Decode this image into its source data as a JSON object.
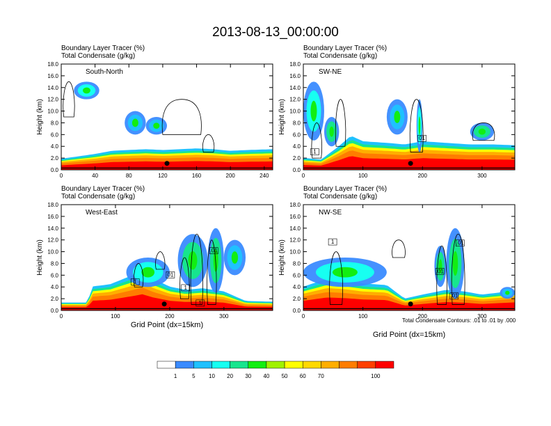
{
  "figure": {
    "title": "2013-08-13_00:00:00",
    "footnote": "Total Condensate Contours: .01 to .01 by .000"
  },
  "chart_data": [
    {
      "type": "heatmap",
      "panel": "South-North",
      "subtitle_1": "Boundary Layer Tracer   (%)",
      "subtitle_2": "Total Condensate   (g/kg)",
      "xlabel": "",
      "ylabel": "Height (km)",
      "xlim": [
        0,
        250
      ],
      "ylim": [
        0,
        18
      ],
      "xticks": [
        0,
        40,
        80,
        120,
        160,
        200,
        240
      ],
      "yticks": [
        "0.0",
        "2.0",
        "4.0",
        "6.0",
        "8.0",
        "10.0",
        "12.0",
        "14.0",
        "16.0",
        "18.0"
      ],
      "marker_x": 125,
      "pbl_top": [
        [
          0,
          1.4
        ],
        [
          20,
          1.7
        ],
        [
          40,
          2.0
        ],
        [
          60,
          2.4
        ],
        [
          80,
          2.5
        ],
        [
          100,
          2.6
        ],
        [
          120,
          2.5
        ],
        [
          140,
          2.6
        ],
        [
          160,
          2.7
        ],
        [
          180,
          2.6
        ],
        [
          200,
          2.4
        ],
        [
          220,
          2.5
        ],
        [
          250,
          2.6
        ]
      ],
      "plumes": [
        {
          "x": [
            15,
            45
          ],
          "base": 12,
          "top": 15,
          "level": 20
        },
        {
          "x": [
            75,
            100
          ],
          "base": 6,
          "top": 10,
          "level": 10
        },
        {
          "x": [
            100,
            125
          ],
          "base": 6,
          "top": 9,
          "level": 10
        }
      ],
      "contours": [
        {
          "x": [
            3,
            15
          ],
          "base": 9,
          "top": 15
        },
        {
          "x": [
            120,
            165
          ],
          "base": 6,
          "top": 12
        },
        {
          "x": [
            168,
            180
          ],
          "base": 3,
          "top": 6
        }
      ],
      "labels": []
    },
    {
      "type": "heatmap",
      "panel": "SW-NE",
      "subtitle_1": "Boundary Layer Tracer   (%)",
      "subtitle_2": "Total Condensate   (g/kg)",
      "xlabel": "",
      "ylabel": "Height (km)",
      "xlim": [
        0,
        355
      ],
      "ylim": [
        0,
        18
      ],
      "xticks": [
        0,
        100,
        200,
        300
      ],
      "yticks": [
        "0.0",
        "2.0",
        "4.0",
        "6.0",
        "8.0",
        "10.0",
        "12.0",
        "14.0",
        "16.0",
        "18.0"
      ],
      "marker_x": 180,
      "pbl_top": [
        [
          0,
          1.5
        ],
        [
          30,
          1.3
        ],
        [
          60,
          3.0
        ],
        [
          80,
          4.3
        ],
        [
          100,
          3.6
        ],
        [
          140,
          3.4
        ],
        [
          170,
          3.2
        ],
        [
          200,
          3.6
        ],
        [
          240,
          3.4
        ],
        [
          280,
          3.2
        ],
        [
          320,
          3.2
        ],
        [
          355,
          3.1
        ]
      ],
      "plumes": [
        {
          "x": [
            0,
            35
          ],
          "base": 5,
          "top": 15,
          "level": 20
        },
        {
          "x": [
            35,
            60
          ],
          "base": 4,
          "top": 9,
          "level": 30
        },
        {
          "x": [
            140,
            175
          ],
          "base": 6,
          "top": 12,
          "level": 10
        },
        {
          "x": [
            190,
            200
          ],
          "base": 3,
          "top": 12,
          "level": 40
        },
        {
          "x": [
            280,
            320
          ],
          "base": 5,
          "top": 8,
          "level": 30
        }
      ],
      "contours": [
        {
          "x": [
            15,
            30
          ],
          "base": 2,
          "top": 8
        },
        {
          "x": [
            55,
            70
          ],
          "base": 4,
          "top": 12
        },
        {
          "x": [
            180,
            200
          ],
          "base": 3,
          "top": 12
        },
        {
          "x": [
            285,
            320
          ],
          "base": 5,
          "top": 8
        }
      ],
      "labels": [
        {
          "x": 18,
          "y": 3,
          "text": "1"
        },
        {
          "x": 198,
          "y": 5.3,
          "text": "01"
        }
      ]
    },
    {
      "type": "heatmap",
      "panel": "West-East",
      "subtitle_1": "Boundary Layer Tracer   (%)",
      "subtitle_2": "Total Condensate   (g/kg)",
      "xlabel": "Grid Point (dx=15km)",
      "ylabel": "Height (km)",
      "xlim": [
        0,
        390
      ],
      "ylim": [
        0,
        18
      ],
      "xticks": [
        0,
        100,
        200,
        300
      ],
      "yticks": [
        "0.0",
        "2.0",
        "4.0",
        "6.0",
        "8.0",
        "10.0",
        "12.0",
        "14.0",
        "16.0",
        "18.0"
      ],
      "marker_x": 190,
      "pbl_top": [
        [
          0,
          1.0
        ],
        [
          50,
          1.0
        ],
        [
          55,
          3.0
        ],
        [
          90,
          3.3
        ],
        [
          130,
          4.4
        ],
        [
          150,
          5.0
        ],
        [
          170,
          4.0
        ],
        [
          200,
          3.0
        ],
        [
          230,
          2.6
        ],
        [
          260,
          2.8
        ],
        [
          300,
          2.4
        ],
        [
          340,
          1.2
        ],
        [
          390,
          1.1
        ]
      ],
      "plumes": [
        {
          "x": [
            120,
            200
          ],
          "base": 4,
          "top": 9,
          "level": 20
        },
        {
          "x": [
            215,
            270
          ],
          "base": 4,
          "top": 13,
          "level": 30
        },
        {
          "x": [
            270,
            300
          ],
          "base": 3,
          "top": 14,
          "level": 30
        },
        {
          "x": [
            300,
            340
          ],
          "base": 6,
          "top": 12,
          "level": 10
        }
      ],
      "contours": [
        {
          "x": [
            135,
            150
          ],
          "base": 4,
          "top": 8
        },
        {
          "x": [
            175,
            190
          ],
          "base": 7,
          "top": 10
        },
        {
          "x": [
            220,
            235
          ],
          "base": 2,
          "top": 9
        },
        {
          "x": [
            240,
            260
          ],
          "base": 1,
          "top": 13
        },
        {
          "x": [
            270,
            285
          ],
          "base": 1,
          "top": 12
        }
      ],
      "labels": [
        {
          "x": 135,
          "y": 4.8,
          "text": "1"
        },
        {
          "x": 200,
          "y": 6.0,
          "text": "01"
        },
        {
          "x": 228,
          "y": 3.8,
          "text": "1"
        },
        {
          "x": 280,
          "y": 10.1,
          "text": ".01"
        },
        {
          "x": 255,
          "y": 1.2,
          "text": "1"
        }
      ]
    },
    {
      "type": "heatmap",
      "panel": "NW-SE",
      "subtitle_1": "Boundary Layer Tracer   (%)",
      "subtitle_2": "Total Condensate   (g/kg)",
      "xlabel": "Grid Point (dx=15km)",
      "ylabel": "Height (km)",
      "xlim": [
        0,
        355
      ],
      "ylim": [
        0,
        18
      ],
      "xticks": [
        0,
        100,
        200,
        300
      ],
      "yticks": [
        "0.0",
        "2.0",
        "4.0",
        "6.0",
        "8.0",
        "10.0",
        "12.0",
        "14.0",
        "16.0",
        "18.0"
      ],
      "marker_x": 180,
      "pbl_top": [
        [
          0,
          3.0
        ],
        [
          40,
          4.0
        ],
        [
          70,
          3.8
        ],
        [
          100,
          3.4
        ],
        [
          140,
          3.2
        ],
        [
          170,
          1.5
        ],
        [
          200,
          2.0
        ],
        [
          240,
          2.6
        ],
        [
          270,
          2.4
        ],
        [
          300,
          2.0
        ],
        [
          355,
          2.5
        ]
      ],
      "plumes": [
        {
          "x": [
            0,
            140
          ],
          "base": 4,
          "top": 9,
          "level": 20
        },
        {
          "x": [
            220,
            240
          ],
          "base": 4,
          "top": 11,
          "level": 30
        },
        {
          "x": [
            240,
            270
          ],
          "base": 2,
          "top": 14,
          "level": 30
        },
        {
          "x": [
            330,
            355
          ],
          "base": 2,
          "top": 4,
          "level": 10
        }
      ],
      "contours": [
        {
          "x": [
            45,
            65
          ],
          "base": 1,
          "top": 10
        },
        {
          "x": [
            150,
            170
          ],
          "base": 9,
          "top": 12
        },
        {
          "x": [
            225,
            240
          ],
          "base": 1,
          "top": 11
        },
        {
          "x": [
            250,
            270
          ],
          "base": 1,
          "top": 13
        }
      ],
      "labels": [
        {
          "x": 48,
          "y": 11.6,
          "text": "1"
        },
        {
          "x": 228,
          "y": 6.6,
          "text": ".01"
        },
        {
          "x": 262,
          "y": 11.4,
          "text": ".01"
        },
        {
          "x": 252,
          "y": 2.4,
          "text": ".01"
        }
      ]
    }
  ],
  "colorbar": {
    "colors": [
      "#ffffff",
      "#3a8bff",
      "#1fc1ff",
      "#17fff1",
      "#17e58e",
      "#12ee12",
      "#a0f200",
      "#ffff00",
      "#ffd900",
      "#ffae00",
      "#ff7d00",
      "#ff3f00",
      "#ff0000"
    ],
    "labels": [
      "1",
      "5",
      "10",
      "20",
      "30",
      "40",
      "50",
      "60",
      "70",
      "100"
    ]
  }
}
